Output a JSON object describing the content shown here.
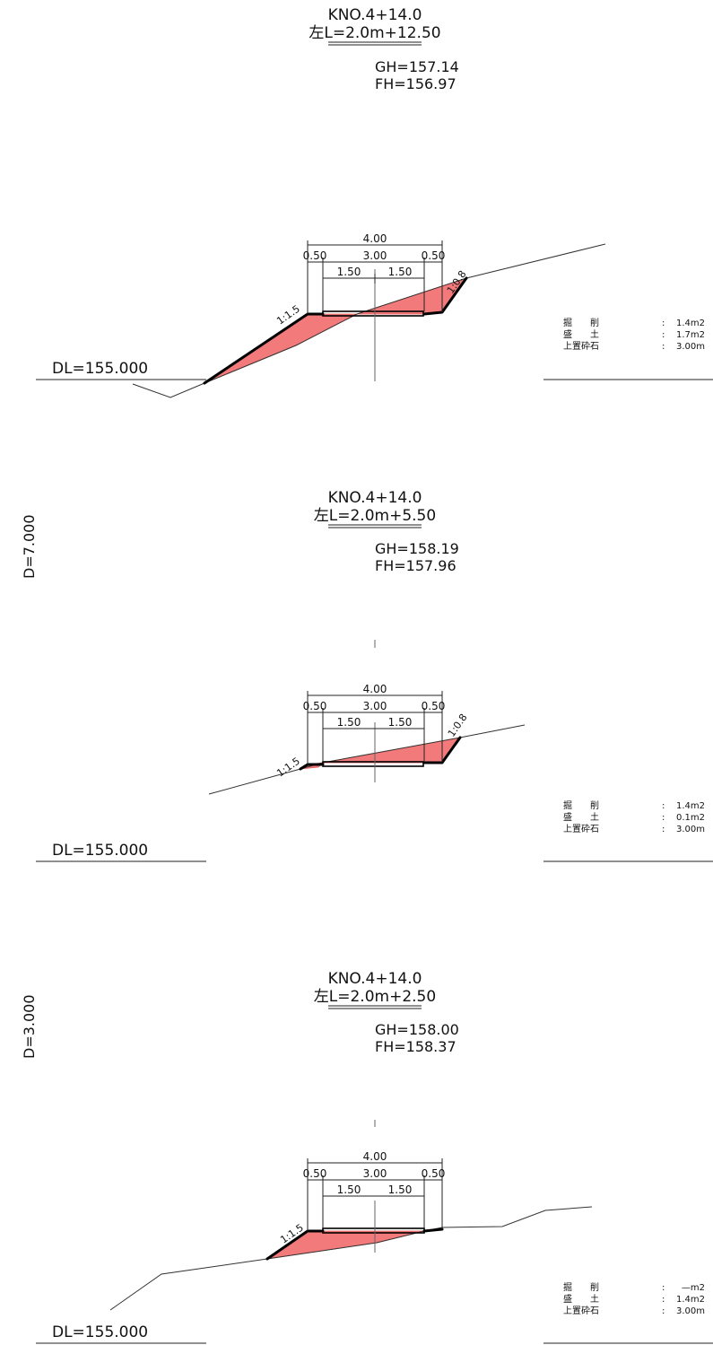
{
  "sections": [
    {
      "station": "KNO.4+14.0",
      "offset_label": "左L=2.0m+12.50",
      "gh_label": "GH=157.14",
      "fh_label": "FH=156.97",
      "dl_label": "DL=155.000",
      "dims": {
        "total": "4.00",
        "shoulder_left": "0.50",
        "middle": "3.00",
        "shoulder_right": "0.50",
        "half_left": "1.50",
        "half_right": "1.50"
      },
      "slope_left": "1:1.5",
      "slope_right": "1:0.8",
      "quantities": [
        {
          "label": "掘　　削",
          "sep": ":",
          "value": "1.4m2"
        },
        {
          "label": "盛　　土",
          "sep": ":",
          "value": "1.7m2"
        },
        {
          "label": "上置砕石",
          "sep": ":",
          "value": "3.00m"
        }
      ]
    },
    {
      "station": "KNO.4+14.0",
      "offset_label": "左L=2.0m+5.50",
      "gh_label": "GH=158.19",
      "fh_label": "FH=157.96",
      "dl_label": "DL=155.000",
      "side_label": "D=7.000",
      "dims": {
        "total": "4.00",
        "shoulder_left": "0.50",
        "middle": "3.00",
        "shoulder_right": "0.50",
        "half_left": "1.50",
        "half_right": "1.50"
      },
      "slope_left": "1:1.5",
      "slope_right": "1:0.8",
      "quantities": [
        {
          "label": "掘　　削",
          "sep": ":",
          "value": "1.4m2"
        },
        {
          "label": "盛　　土",
          "sep": ":",
          "value": "0.1m2"
        },
        {
          "label": "上置砕石",
          "sep": ":",
          "value": "3.00m"
        }
      ]
    },
    {
      "station": "KNO.4+14.0",
      "offset_label": "左L=2.0m+2.50",
      "gh_label": "GH=158.00",
      "fh_label": "FH=158.37",
      "dl_label": "DL=155.000",
      "side_label": "D=3.000",
      "dims": {
        "total": "4.00",
        "shoulder_left": "0.50",
        "middle": "3.00",
        "shoulder_right": "0.50",
        "half_left": "1.50",
        "half_right": "1.50"
      },
      "slope_left": "1:1.5",
      "quantities": [
        {
          "label": "掘　　削",
          "sep": ":",
          "value": "—m2"
        },
        {
          "label": "盛　　土",
          "sep": ":",
          "value": "1.4m2"
        },
        {
          "label": "上置砕石",
          "sep": ":",
          "value": "3.00m"
        }
      ]
    }
  ]
}
